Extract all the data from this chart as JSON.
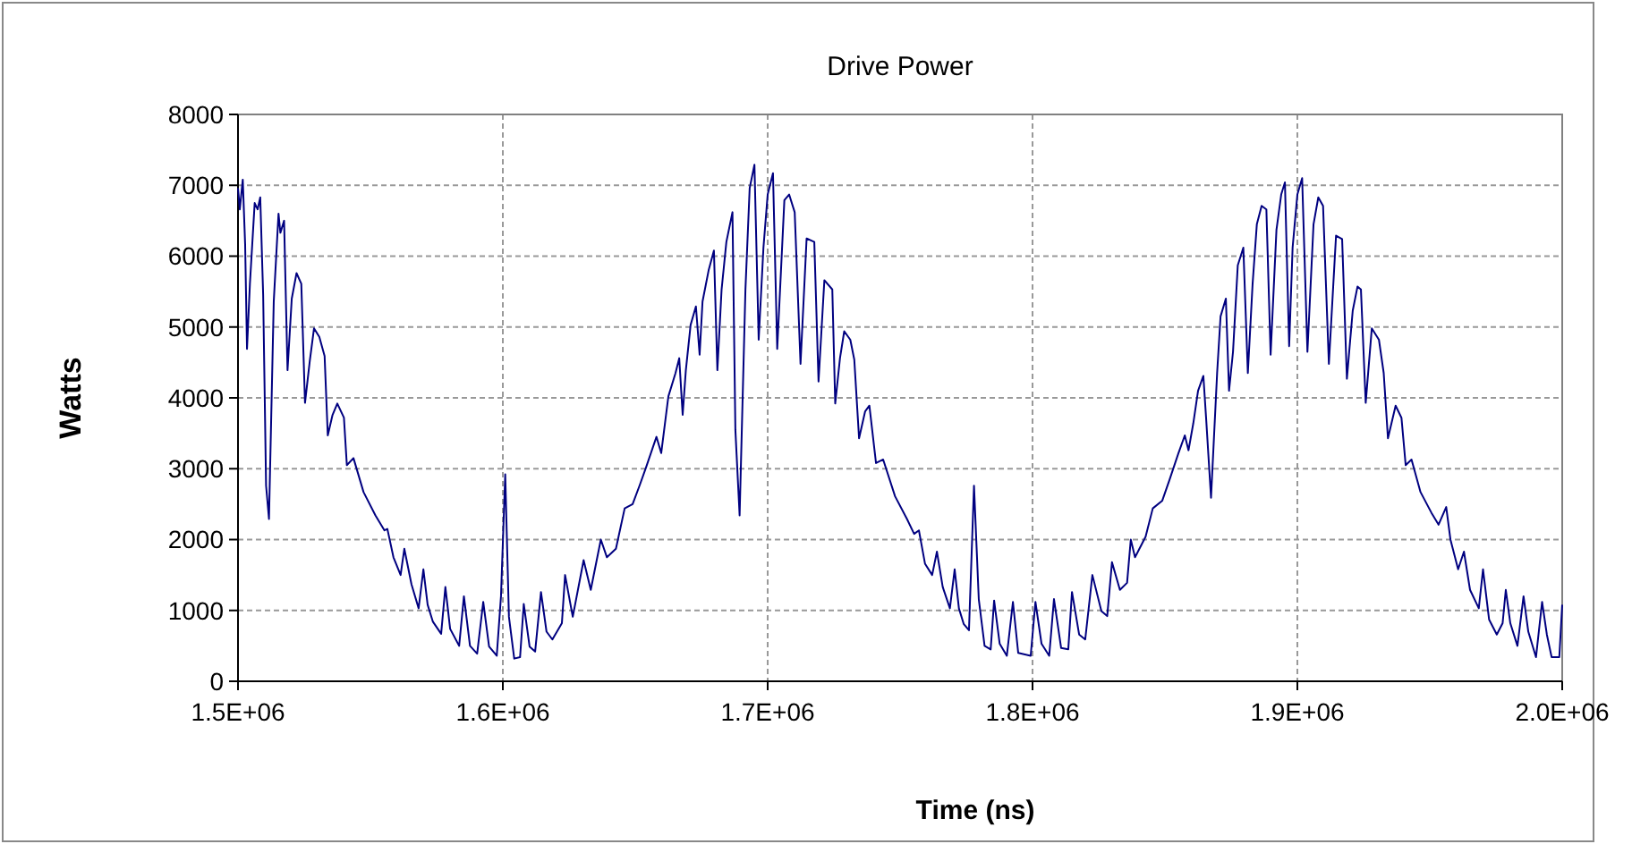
{
  "chart_data": {
    "type": "line",
    "title": "Drive Power",
    "xlabel": "Time (ns)",
    "ylabel": "Watts",
    "xlim": [
      1500000,
      2000000
    ],
    "xticks": [
      {
        "value": 1500000,
        "label": "1.5E+06"
      },
      {
        "value": 1600000,
        "label": "1.6E+06"
      },
      {
        "value": 1700000,
        "label": "1.7E+06"
      },
      {
        "value": 1800000,
        "label": "1.8E+06"
      },
      {
        "value": 1900000,
        "label": "1.9E+06"
      },
      {
        "value": 2000000,
        "label": "2.0E+06"
      }
    ],
    "ylim": [
      0,
      8000
    ],
    "yticks": [
      0,
      1000,
      2000,
      3000,
      4000,
      5000,
      6000,
      7000,
      8000
    ],
    "grid": true,
    "marker": "none",
    "line_style": "solid",
    "x": [
      1500000,
      1500680,
      1501800,
      1502700,
      1503400,
      1504500,
      1506300,
      1507400,
      1508400,
      1509500,
      1510600,
      1511700,
      1513500,
      1515300,
      1516000,
      1517400,
      1518700,
      1520300,
      1522100,
      1523900,
      1525300,
      1527100,
      1528700,
      1530700,
      1532700,
      1533900,
      1535700,
      1537500,
      1540000,
      1541100,
      1543600,
      1547400,
      1551900,
      1555300,
      1556400,
      1558700,
      1561400,
      1562800,
      1565500,
      1568200,
      1570000,
      1571600,
      1573600,
      1576700,
      1578300,
      1580100,
      1583500,
      1585300,
      1587600,
      1590300,
      1592600,
      1594800,
      1597700,
      1599300,
      1600900,
      1602300,
      1604300,
      1606500,
      1607900,
      1610100,
      1612200,
      1614400,
      1616500,
      1618700,
      1622300,
      1623500,
      1626400,
      1630500,
      1633200,
      1637000,
      1639300,
      1642700,
      1646000,
      1649000,
      1651700,
      1654000,
      1656900,
      1658000,
      1659800,
      1662500,
      1665200,
      1666600,
      1667900,
      1669100,
      1670900,
      1672900,
      1674300,
      1675400,
      1677700,
      1679700,
      1681000,
      1682600,
      1684400,
      1686700,
      1687800,
      1689400,
      1691600,
      1693200,
      1695000,
      1696600,
      1698400,
      1700000,
      1702000,
      1703600,
      1706300,
      1708100,
      1710200,
      1712400,
      1714700,
      1717600,
      1719200,
      1721400,
      1724400,
      1725500,
      1727300,
      1728900,
      1731200,
      1732700,
      1734500,
      1736800,
      1738400,
      1740900,
      1743600,
      1748100,
      1752600,
      1755300,
      1757100,
      1759400,
      1762100,
      1763900,
      1766100,
      1768800,
      1770600,
      1772200,
      1774000,
      1776000,
      1777900,
      1779700,
      1781900,
      1784200,
      1785500,
      1787600,
      1790300,
      1792600,
      1794600,
      1799300,
      1801100,
      1803400,
      1806300,
      1808100,
      1810800,
      1813500,
      1814900,
      1817600,
      1819900,
      1822600,
      1826000,
      1828200,
      1830000,
      1833000,
      1835700,
      1837100,
      1838700,
      1842700,
      1845400,
      1849000,
      1851700,
      1855100,
      1857500,
      1858900,
      1860700,
      1862500,
      1864500,
      1865600,
      1867400,
      1869700,
      1871000,
      1873000,
      1874200,
      1875700,
      1877500,
      1879600,
      1881300,
      1883100,
      1884700,
      1886500,
      1888300,
      1889900,
      1892100,
      1893900,
      1895300,
      1896900,
      1898200,
      1900000,
      1901800,
      1903800,
      1906100,
      1907900,
      1909700,
      1911900,
      1914600,
      1916900,
      1918700,
      1920900,
      1922700,
      1924000,
      1925800,
      1928100,
      1930800,
      1932600,
      1934200,
      1937100,
      1939300,
      1940900,
      1943100,
      1946500,
      1950600,
      1953300,
      1956200,
      1957800,
      1960700,
      1962900,
      1965200,
      1968500,
      1970100,
      1972400,
      1975300,
      1977500,
      1978700,
      1980400,
      1983100,
      1985400,
      1987200,
      1990100,
      1992400,
      1994200,
      1996000,
      1998900,
      2000000
    ],
    "series": [
      {
        "color": "#000080",
        "values": [
          6960,
          6660,
          7080,
          6160,
          4690,
          5610,
          6750,
          6660,
          6830,
          5450,
          2760,
          2290,
          5360,
          6600,
          6330,
          6500,
          4390,
          5400,
          5760,
          5610,
          3930,
          4520,
          4980,
          4860,
          4590,
          3470,
          3760,
          3920,
          3720,
          3050,
          3150,
          2670,
          2340,
          2130,
          2150,
          1750,
          1500,
          1870,
          1370,
          1030,
          1580,
          1080,
          840,
          670,
          1330,
          740,
          500,
          1200,
          500,
          390,
          1120,
          490,
          360,
          1200,
          2920,
          910,
          320,
          340,
          1090,
          490,
          420,
          1260,
          700,
          590,
          820,
          1500,
          910,
          1710,
          1290,
          2000,
          1750,
          1870,
          2440,
          2500,
          2770,
          3010,
          3330,
          3450,
          3220,
          4020,
          4350,
          4560,
          3760,
          4390,
          5030,
          5290,
          4610,
          5360,
          5800,
          6080,
          4390,
          5530,
          6200,
          6620,
          3550,
          2340,
          5530,
          6960,
          7290,
          4820,
          6120,
          6870,
          7170,
          4690,
          6790,
          6870,
          6620,
          4480,
          6250,
          6200,
          4230,
          5660,
          5530,
          3920,
          4560,
          4940,
          4820,
          4540,
          3430,
          3810,
          3890,
          3080,
          3130,
          2610,
          2290,
          2080,
          2130,
          1660,
          1500,
          1830,
          1330,
          1030,
          1580,
          1030,
          810,
          720,
          2760,
          1160,
          500,
          450,
          1140,
          530,
          360,
          1120,
          400,
          360,
          1120,
          530,
          360,
          1160,
          470,
          450,
          1260,
          660,
          590,
          1500,
          990,
          920,
          1680,
          1290,
          1390,
          2000,
          1750,
          2040,
          2440,
          2550,
          2840,
          3220,
          3470,
          3260,
          3640,
          4100,
          4310,
          3680,
          2590,
          4350,
          5150,
          5400,
          4100,
          4650,
          5870,
          6120,
          4350,
          5610,
          6450,
          6710,
          6660,
          4610,
          6370,
          6870,
          7040,
          4730,
          6120,
          6870,
          7100,
          4650,
          6450,
          6830,
          6710,
          4480,
          6290,
          6240,
          4270,
          5230,
          5570,
          5530,
          3930,
          4980,
          4820,
          4350,
          3430,
          3890,
          3720,
          3050,
          3130,
          2670,
          2380,
          2210,
          2460,
          2000,
          1580,
          1830,
          1290,
          1030,
          1580,
          870,
          660,
          820,
          1290,
          820,
          500,
          1200,
          700,
          340,
          1120,
          660,
          340,
          340,
          1080
        ]
      }
    ]
  }
}
